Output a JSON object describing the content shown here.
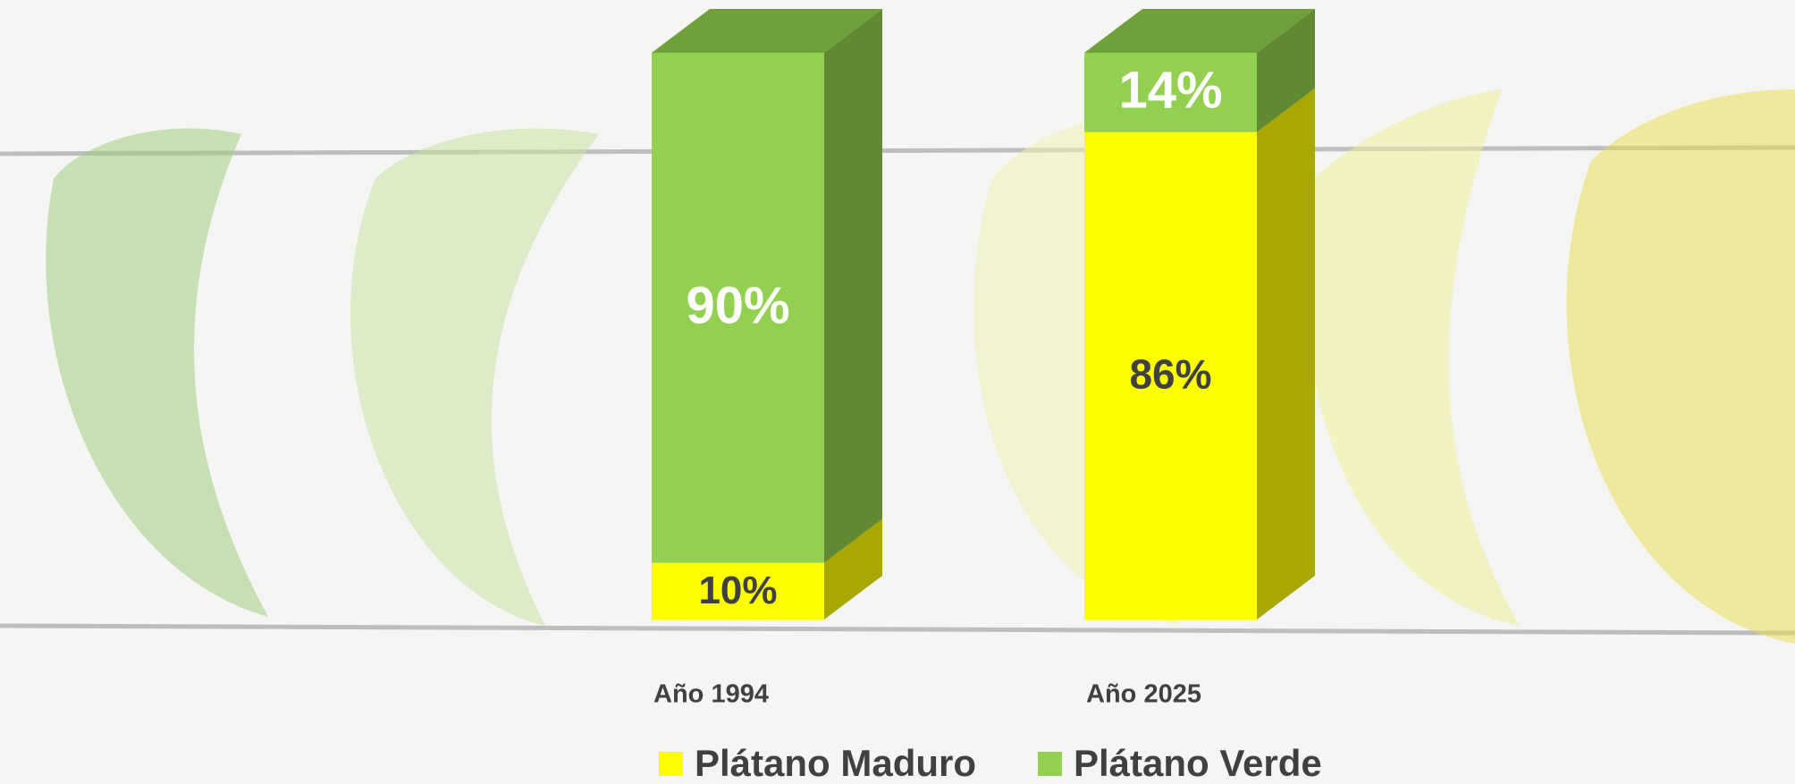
{
  "chart_data": {
    "type": "stacked_bar_3d",
    "categories": [
      "Año 1994",
      "Año 2025"
    ],
    "series": [
      {
        "name": "Plátano Maduro",
        "color": "#ffff00",
        "side_color": "#a8a800",
        "label_color": "#404040",
        "values": [
          10,
          86
        ],
        "value_labels": [
          "10%",
          "86%"
        ]
      },
      {
        "name": "Plátano Verde",
        "color": "#92d050",
        "side_color": "#5f8a32",
        "top_color": "#70a03c",
        "label_color": "#ffffff",
        "values": [
          90,
          14
        ],
        "value_labels": [
          "90%",
          "14%"
        ]
      }
    ],
    "legend": "bottom"
  }
}
